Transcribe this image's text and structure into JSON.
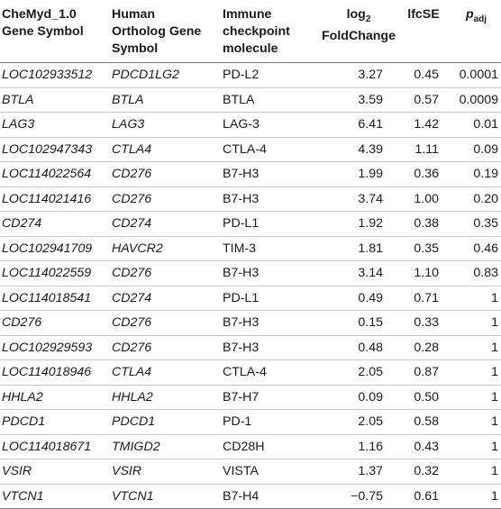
{
  "table": {
    "headers": {
      "col1_line1": "CheMyd_1.0",
      "col1_line2": "Gene Symbol",
      "col2_line1": "Human",
      "col2_line2": "Ortholog Gene",
      "col2_line3": "Symbol",
      "col3_line1": "Immune",
      "col3_line2": "checkpoint",
      "col3_line3": "molecule",
      "col4_log": "log",
      "col4_sub": "2",
      "col4_line2": "FoldChange",
      "col5": "lfcSE",
      "col6_p": "p",
      "col6_sub": "adj"
    },
    "rows": [
      [
        "LOC102933512",
        "PDCD1LG2",
        "PD-L2",
        "3.27",
        "0.45",
        "0.0001"
      ],
      [
        "BTLA",
        "BTLA",
        "BTLA",
        "3.59",
        "0.57",
        "0.0009"
      ],
      [
        "LAG3",
        "LAG3",
        "LAG-3",
        "6.41",
        "1.42",
        "0.01"
      ],
      [
        "LOC102947343",
        "CTLA4",
        "CTLA-4",
        "4.39",
        "1.11",
        "0.09"
      ],
      [
        "LOC114022564",
        "CD276",
        "B7-H3",
        "1.99",
        "0.36",
        "0.19"
      ],
      [
        "LOC114021416",
        "CD276",
        "B7-H3",
        "3.74",
        "1.00",
        "0.20"
      ],
      [
        "CD274",
        "CD274",
        "PD-L1",
        "1.92",
        "0.38",
        "0.35"
      ],
      [
        "LOC102941709",
        "HAVCR2",
        "TIM-3",
        "1.81",
        "0.35",
        "0.46"
      ],
      [
        "LOC114022559",
        "CD276",
        "B7-H3",
        "3.14",
        "1.10",
        "0.83"
      ],
      [
        "LOC114018541",
        "CD274",
        "PD-L1",
        "0.49",
        "0.71",
        "1"
      ],
      [
        "CD276",
        "CD276",
        "B7-H3",
        "0.15",
        "0.33",
        "1"
      ],
      [
        "LOC102929593",
        "CD276",
        "B7-H3",
        "0.48",
        "0.28",
        "1"
      ],
      [
        "LOC114018946",
        "CTLA4",
        "CTLA-4",
        "2.05",
        "0.87",
        "1"
      ],
      [
        "HHLA2",
        "HHLA2",
        "B7-H7",
        "0.09",
        "0.50",
        "1"
      ],
      [
        "PDCD1",
        "PDCD1",
        "PD-1",
        "2.05",
        "0.58",
        "1"
      ],
      [
        "LOC114018671",
        "TMIGD2",
        "CD28H",
        "1.16",
        "0.43",
        "1"
      ],
      [
        "VSIR",
        "VSIR",
        "VISTA",
        "1.37",
        "0.32",
        "1"
      ],
      [
        "VTCN1",
        "VTCN1",
        "B7-H4",
        "−0.75",
        "0.61",
        "1"
      ]
    ]
  }
}
